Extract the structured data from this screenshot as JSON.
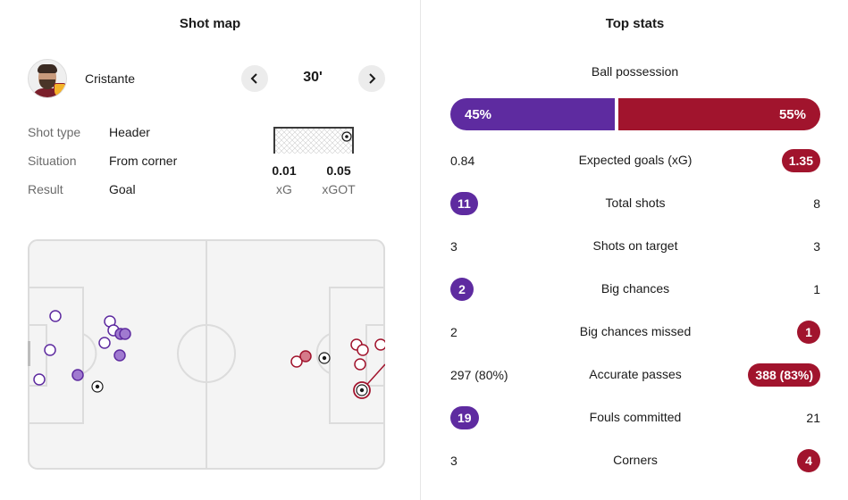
{
  "shot_map": {
    "title": "Shot map",
    "player_name": "Cristante",
    "minute": "30'",
    "prev_icon": "chevron-left-icon",
    "next_icon": "chevron-right-icon",
    "details": [
      {
        "label": "Shot type",
        "value": "Header"
      },
      {
        "label": "Situation",
        "value": "From corner"
      },
      {
        "label": "Result",
        "value": "Goal"
      }
    ],
    "xg": {
      "value": "0.01",
      "label": "xG"
    },
    "xgot": {
      "value": "0.05",
      "label": "xGOT"
    }
  },
  "top_stats": {
    "title": "Top stats",
    "possession": {
      "label": "Ball possession",
      "home": "45%",
      "away": "55%",
      "home_share": 45
    },
    "rows": [
      {
        "name": "Expected goals (xG)",
        "home": "0.84",
        "away": "1.35",
        "leader": "away"
      },
      {
        "name": "Total shots",
        "home": "11",
        "away": "8",
        "leader": "home"
      },
      {
        "name": "Shots on target",
        "home": "3",
        "away": "3",
        "leader": "none"
      },
      {
        "name": "Big chances",
        "home": "2",
        "away": "1",
        "leader": "home"
      },
      {
        "name": "Big chances missed",
        "home": "2",
        "away": "1",
        "leader": "away"
      },
      {
        "name": "Accurate passes",
        "home": "297 (80%)",
        "away": "388 (83%)",
        "leader": "away"
      },
      {
        "name": "Fouls committed",
        "home": "19",
        "away": "21",
        "leader": "home"
      },
      {
        "name": "Corners",
        "home": "3",
        "away": "4",
        "leader": "away"
      }
    ]
  },
  "colors": {
    "home": "#5e2ba0",
    "away": "#a1142d",
    "pitch_line": "#dcdcdc",
    "pitch_bg": "#f4f4f4"
  }
}
